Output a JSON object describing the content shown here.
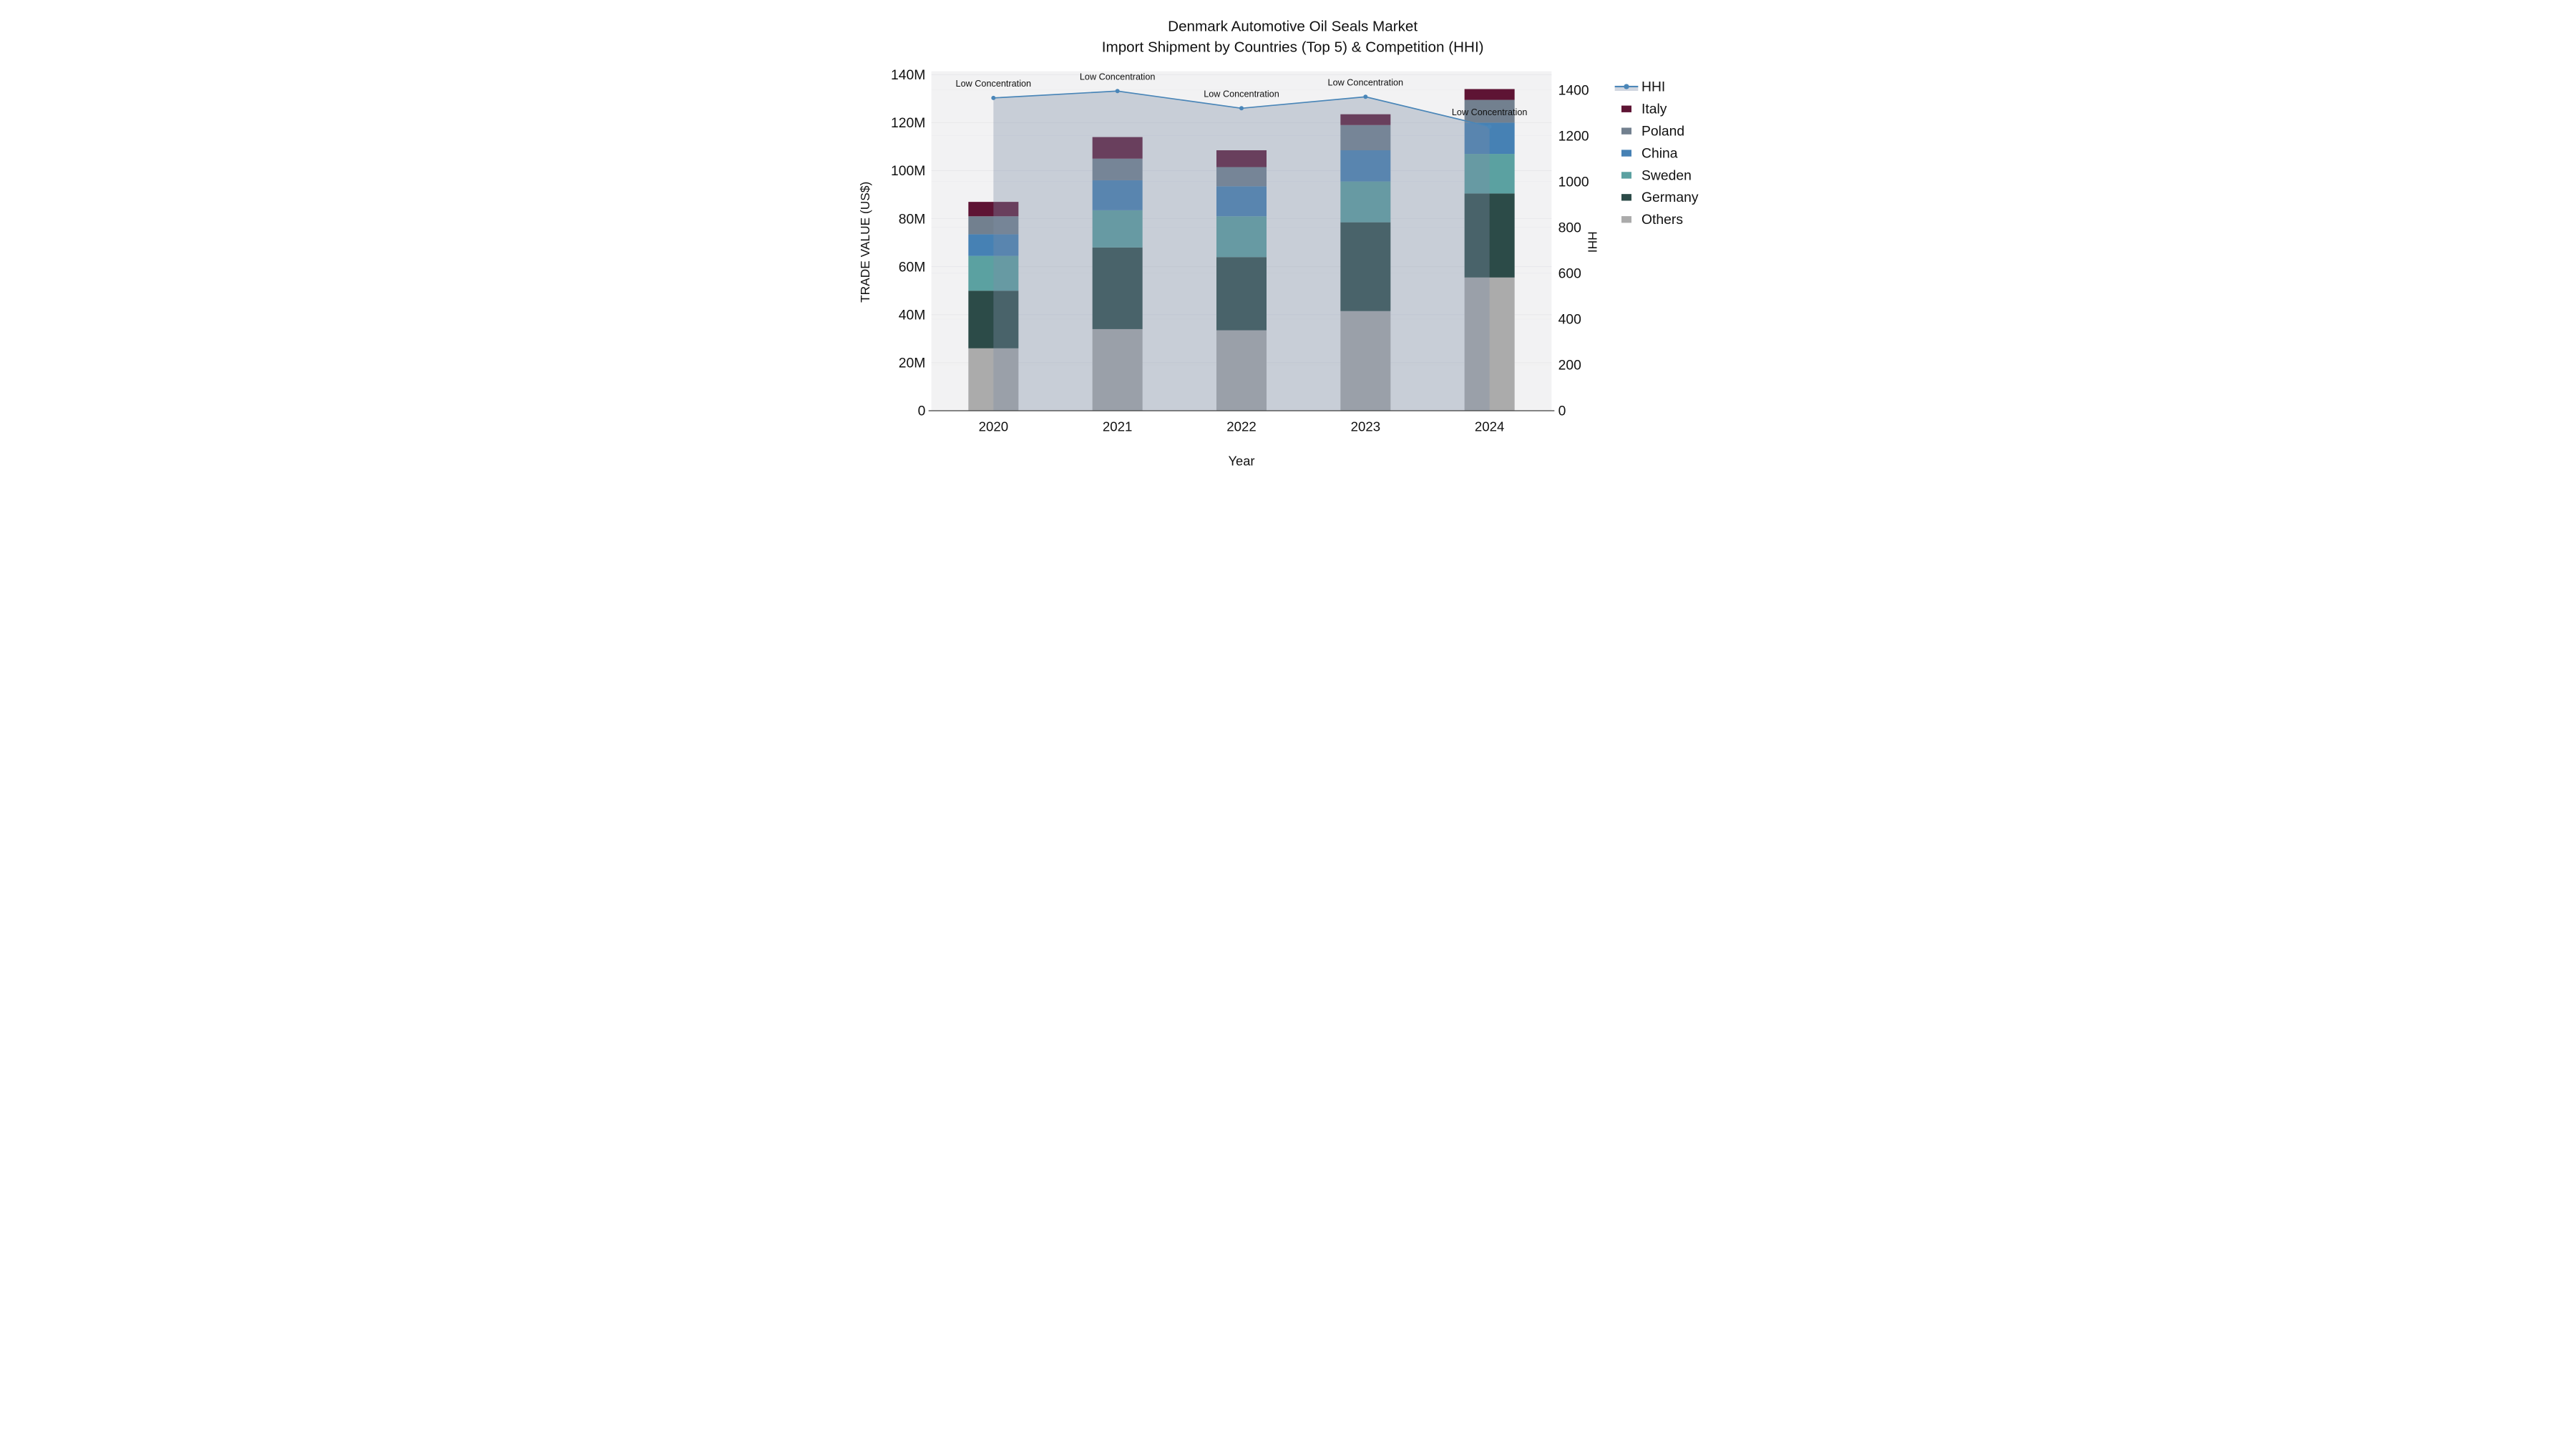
{
  "title": {
    "line1": "Denmark Automotive Oil Seals Market",
    "line2": "Import Shipment by Countries (Top 5) & Competition (HHI)"
  },
  "chart_data": {
    "type": "combo-stacked-bar-line",
    "categories": [
      "2020",
      "2021",
      "2022",
      "2023",
      "2024"
    ],
    "bar_unit": "Million US$",
    "series": [
      {
        "name": "Others",
        "color": "#ababab",
        "values": [
          26,
          34,
          33.5,
          41.5,
          55.5
        ]
      },
      {
        "name": "Germany",
        "color": "#2c4b48",
        "values": [
          24,
          34,
          30.5,
          37,
          35
        ]
      },
      {
        "name": "Sweden",
        "color": "#5ba1a1",
        "values": [
          14.5,
          15.5,
          17,
          17,
          16.5
        ]
      },
      {
        "name": "China",
        "color": "#4681b4",
        "values": [
          9,
          12.5,
          12.5,
          13,
          13
        ]
      },
      {
        "name": "Poland",
        "color": "#72808f",
        "values": [
          7.5,
          9,
          8,
          10.5,
          9.5
        ]
      },
      {
        "name": "Italy",
        "color": "#5e1434",
        "values": [
          6,
          9,
          7,
          4.5,
          4.5
        ]
      }
    ],
    "bar_totals": [
      87,
      114,
      108.5,
      123.5,
      134
    ],
    "line_series": {
      "name": "HHI",
      "color": "#4a86b8",
      "area_fill": "rgba(125,140,165,0.36)",
      "legend_band_color": "#d0d6e0",
      "values": [
        1365,
        1395,
        1320,
        1370,
        1240
      ]
    },
    "annotations": [
      {
        "category": "2020",
        "label": "Low Concentration"
      },
      {
        "category": "2021",
        "label": "Low Concentration"
      },
      {
        "category": "2022",
        "label": "Low Concentration"
      },
      {
        "category": "2023",
        "label": "Low Concentration"
      },
      {
        "category": "2024",
        "label": "Low Concentration"
      }
    ],
    "axes": {
      "x": {
        "label": "Year"
      },
      "y_left": {
        "label": "TRADE VALUE (US$)",
        "tick_labels": [
          "0",
          "20M",
          "40M",
          "60M",
          "80M",
          "100M",
          "120M",
          "140M"
        ],
        "tick_values": [
          0,
          20,
          40,
          60,
          80,
          100,
          120,
          140
        ],
        "range_max": 141.5
      },
      "y_right": {
        "label": "HHI",
        "tick_labels": [
          "0",
          "200",
          "400",
          "600",
          "800",
          "1000",
          "1200",
          "1400"
        ],
        "tick_values": [
          0,
          200,
          400,
          600,
          800,
          1000,
          1200,
          1400
        ],
        "range_max": 1481
      }
    },
    "legend_order": [
      "HHI",
      "Italy",
      "Poland",
      "China",
      "Sweden",
      "Germany",
      "Others"
    ],
    "plot_background": "#f2f2f3",
    "gridline_color_left": "#e6e6e9",
    "gridline_color_right": "#ebebed",
    "axis_line_color": "#3f3f3f"
  }
}
